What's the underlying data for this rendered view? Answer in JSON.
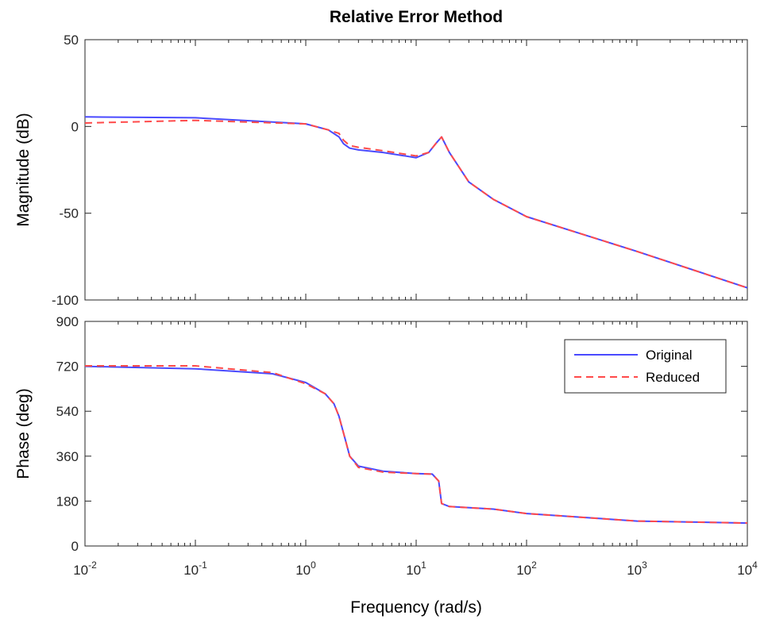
{
  "chart_data": {
    "type": "line",
    "title": "Relative Error Method",
    "xlabel": "Frequency  (rad/s)",
    "xscale": "log",
    "xlim": [
      0.01,
      10000
    ],
    "x_ticks": [
      {
        "base": "10",
        "exp": "-2"
      },
      {
        "base": "10",
        "exp": "-1"
      },
      {
        "base": "10",
        "exp": "0"
      },
      {
        "base": "10",
        "exp": "1"
      },
      {
        "base": "10",
        "exp": "2"
      },
      {
        "base": "10",
        "exp": "3"
      },
      {
        "base": "10",
        "exp": "4"
      }
    ],
    "grid": false,
    "legend": {
      "position": "top-right",
      "panel": "phase"
    },
    "colors": {
      "Original": "#4a4aff",
      "Reduced": "#ff4a4a"
    },
    "panels": [
      {
        "id": "magnitude",
        "ylabel": "Magnitude (dB)",
        "ylim": [
          -100,
          50
        ],
        "yticks": [
          50,
          0,
          -50,
          -100
        ],
        "series": [
          {
            "name": "Original",
            "style": "solid",
            "x": [
              0.01,
              0.1,
              1,
              1.6,
              2,
              2.2,
              2.5,
              3,
              5,
              10,
              13,
              15,
              17,
              20,
              30,
              50,
              100,
              1000,
              10000
            ],
            "y": [
              5.5,
              5,
              1.5,
              -2,
              -6,
              -10,
              -12.5,
              -13.5,
              -15,
              -18,
              -15,
              -10,
              -6,
              -15,
              -32,
              -42,
              -52,
              -72,
              -93
            ]
          },
          {
            "name": "Reduced",
            "style": "dashed",
            "x": [
              0.01,
              0.1,
              1,
              1.6,
              2,
              2.2,
              2.5,
              3,
              5,
              10,
              13,
              15,
              17,
              20,
              30,
              50,
              100,
              1000,
              10000
            ],
            "y": [
              2,
              3.5,
              1.5,
              -2,
              -4,
              -8,
              -11,
              -12,
              -14,
              -17,
              -15,
              -10,
              -6,
              -15,
              -32,
              -42,
              -52,
              -72,
              -93
            ]
          }
        ]
      },
      {
        "id": "phase",
        "ylabel": "Phase (deg)",
        "ylim": [
          0,
          900
        ],
        "yticks": [
          900,
          720,
          540,
          360,
          180,
          0
        ],
        "series": [
          {
            "name": "Original",
            "style": "solid",
            "x": [
              0.01,
              0.1,
              0.5,
              1,
              1.5,
              1.8,
              2,
              2.3,
              2.5,
              3,
              5,
              10,
              14,
              16,
              17,
              20,
              50,
              100,
              1000,
              10000
            ],
            "y": [
              720,
              710,
              690,
              655,
              610,
              570,
              520,
              420,
              360,
              320,
              300,
              290,
              288,
              260,
              170,
              158,
              148,
              130,
              100,
              92
            ]
          },
          {
            "name": "Reduced",
            "style": "dashed",
            "x": [
              0.01,
              0.1,
              0.5,
              1,
              1.5,
              1.8,
              2,
              2.3,
              2.5,
              3,
              5,
              10,
              14,
              16,
              17,
              20,
              50,
              100,
              1000,
              10000
            ],
            "y": [
              722,
              722,
              695,
              650,
              610,
              570,
              520,
              420,
              360,
              315,
              296,
              290,
              288,
              260,
              170,
              158,
              148,
              130,
              100,
              92
            ]
          }
        ]
      }
    ]
  }
}
